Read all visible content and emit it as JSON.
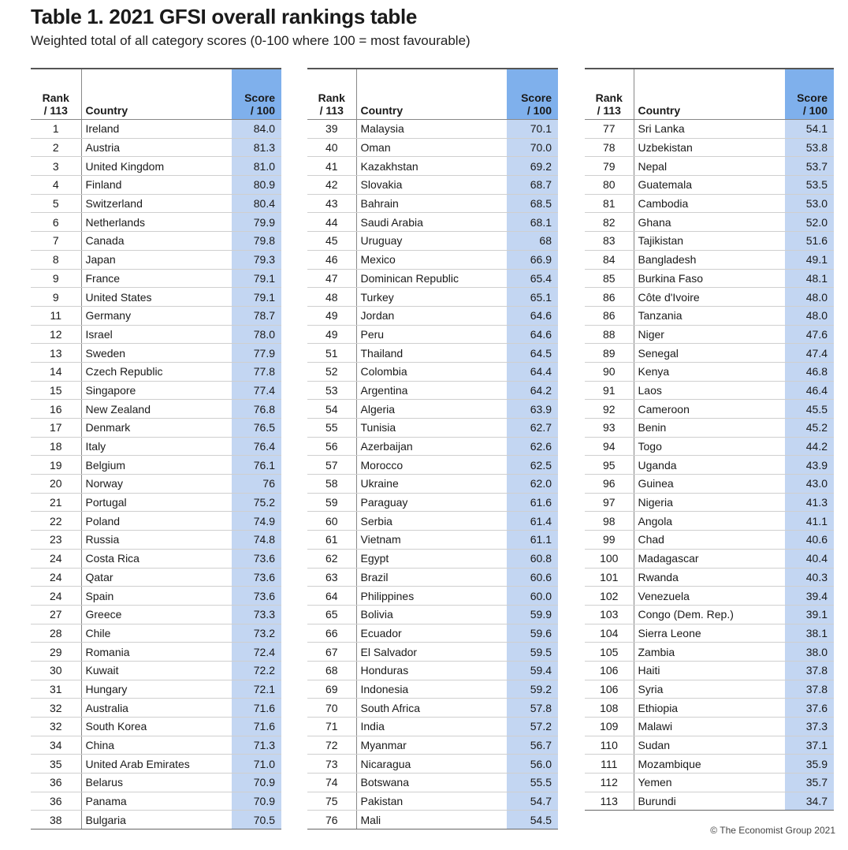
{
  "title": "Table 1. 2021 GFSI overall rankings table",
  "subtitle": "Weighted total of all category scores (0-100 where 100 = most favourable)",
  "headers": {
    "rank_line1": "Rank",
    "rank_line2": "/ 113",
    "country": "Country",
    "score_line1": "Score",
    "score_line2": "/ 100"
  },
  "footer": "© The Economist Group 2021",
  "columns": [
    [
      [
        "1",
        "Ireland",
        "84.0"
      ],
      [
        "2",
        "Austria",
        "81.3"
      ],
      [
        "3",
        "United Kingdom",
        "81.0"
      ],
      [
        "4",
        "Finland",
        "80.9"
      ],
      [
        "5",
        "Switzerland",
        "80.4"
      ],
      [
        "6",
        "Netherlands",
        "79.9"
      ],
      [
        "7",
        "Canada",
        "79.8"
      ],
      [
        "8",
        "Japan",
        "79.3"
      ],
      [
        "9",
        "France",
        "79.1"
      ],
      [
        "9",
        "United States",
        "79.1"
      ],
      [
        "11",
        "Germany",
        "78.7"
      ],
      [
        "12",
        "Israel",
        "78.0"
      ],
      [
        "13",
        "Sweden",
        "77.9"
      ],
      [
        "14",
        "Czech Republic",
        "77.8"
      ],
      [
        "15",
        "Singapore",
        "77.4"
      ],
      [
        "16",
        "New Zealand",
        "76.8"
      ],
      [
        "17",
        "Denmark",
        "76.5"
      ],
      [
        "18",
        "Italy",
        "76.4"
      ],
      [
        "19",
        "Belgium",
        "76.1"
      ],
      [
        "20",
        "Norway",
        "76"
      ],
      [
        "21",
        "Portugal",
        "75.2"
      ],
      [
        "22",
        "Poland",
        "74.9"
      ],
      [
        "23",
        "Russia",
        "74.8"
      ],
      [
        "24",
        "Costa Rica",
        "73.6"
      ],
      [
        "24",
        "Qatar",
        "73.6"
      ],
      [
        "24",
        "Spain",
        "73.6"
      ],
      [
        "27",
        "Greece",
        "73.3"
      ],
      [
        "28",
        "Chile",
        "73.2"
      ],
      [
        "29",
        "Romania",
        "72.4"
      ],
      [
        "30",
        "Kuwait",
        "72.2"
      ],
      [
        "31",
        "Hungary",
        "72.1"
      ],
      [
        "32",
        "Australia",
        "71.6"
      ],
      [
        "32",
        "South Korea",
        "71.6"
      ],
      [
        "34",
        "China",
        "71.3"
      ],
      [
        "35",
        "United Arab Emirates",
        "71.0"
      ],
      [
        "36",
        "Belarus",
        "70.9"
      ],
      [
        "36",
        "Panama",
        "70.9"
      ],
      [
        "38",
        "Bulgaria",
        "70.5"
      ]
    ],
    [
      [
        "39",
        "Malaysia",
        "70.1"
      ],
      [
        "40",
        "Oman",
        "70.0"
      ],
      [
        "41",
        "Kazakhstan",
        "69.2"
      ],
      [
        "42",
        "Slovakia",
        "68.7"
      ],
      [
        "43",
        "Bahrain",
        "68.5"
      ],
      [
        "44",
        "Saudi Arabia",
        "68.1"
      ],
      [
        "45",
        "Uruguay",
        "68"
      ],
      [
        "46",
        "Mexico",
        "66.9"
      ],
      [
        "47",
        "Dominican Republic",
        "65.4"
      ],
      [
        "48",
        "Turkey",
        "65.1"
      ],
      [
        "49",
        "Jordan",
        "64.6"
      ],
      [
        "49",
        "Peru",
        "64.6"
      ],
      [
        "51",
        "Thailand",
        "64.5"
      ],
      [
        "52",
        "Colombia",
        "64.4"
      ],
      [
        "53",
        "Argentina",
        "64.2"
      ],
      [
        "54",
        "Algeria",
        "63.9"
      ],
      [
        "55",
        "Tunisia",
        "62.7"
      ],
      [
        "56",
        "Azerbaijan",
        "62.6"
      ],
      [
        "57",
        "Morocco",
        "62.5"
      ],
      [
        "58",
        "Ukraine",
        "62.0"
      ],
      [
        "59",
        "Paraguay",
        "61.6"
      ],
      [
        "60",
        "Serbia",
        "61.4"
      ],
      [
        "61",
        "Vietnam",
        "61.1"
      ],
      [
        "62",
        "Egypt",
        "60.8"
      ],
      [
        "63",
        "Brazil",
        "60.6"
      ],
      [
        "64",
        "Philippines",
        "60.0"
      ],
      [
        "65",
        "Bolivia",
        "59.9"
      ],
      [
        "66",
        "Ecuador",
        "59.6"
      ],
      [
        "67",
        "El Salvador",
        "59.5"
      ],
      [
        "68",
        "Honduras",
        "59.4"
      ],
      [
        "69",
        "Indonesia",
        "59.2"
      ],
      [
        "70",
        "South Africa",
        "57.8"
      ],
      [
        "71",
        "India",
        "57.2"
      ],
      [
        "72",
        "Myanmar",
        "56.7"
      ],
      [
        "73",
        "Nicaragua",
        "56.0"
      ],
      [
        "74",
        "Botswana",
        "55.5"
      ],
      [
        "75",
        "Pakistan",
        "54.7"
      ],
      [
        "76",
        "Mali",
        "54.5"
      ]
    ],
    [
      [
        "77",
        "Sri Lanka",
        "54.1"
      ],
      [
        "78",
        "Uzbekistan",
        "53.8"
      ],
      [
        "79",
        "Nepal",
        "53.7"
      ],
      [
        "80",
        "Guatemala",
        "53.5"
      ],
      [
        "81",
        "Cambodia",
        "53.0"
      ],
      [
        "82",
        "Ghana",
        "52.0"
      ],
      [
        "83",
        "Tajikistan",
        "51.6"
      ],
      [
        "84",
        "Bangladesh",
        "49.1"
      ],
      [
        "85",
        "Burkina Faso",
        "48.1"
      ],
      [
        "86",
        "Côte d'Ivoire",
        "48.0"
      ],
      [
        "86",
        "Tanzania",
        "48.0"
      ],
      [
        "88",
        "Niger",
        "47.6"
      ],
      [
        "89",
        "Senegal",
        "47.4"
      ],
      [
        "90",
        "Kenya",
        "46.8"
      ],
      [
        "91",
        "Laos",
        "46.4"
      ],
      [
        "92",
        "Cameroon",
        "45.5"
      ],
      [
        "93",
        "Benin",
        "45.2"
      ],
      [
        "94",
        "Togo",
        "44.2"
      ],
      [
        "95",
        "Uganda",
        "43.9"
      ],
      [
        "96",
        "Guinea",
        "43.0"
      ],
      [
        "97",
        "Nigeria",
        "41.3"
      ],
      [
        "98",
        "Angola",
        "41.1"
      ],
      [
        "99",
        "Chad",
        "40.6"
      ],
      [
        "100",
        "Madagascar",
        "40.4"
      ],
      [
        "101",
        "Rwanda",
        "40.3"
      ],
      [
        "102",
        "Venezuela",
        "39.4"
      ],
      [
        "103",
        "Congo (Dem. Rep.)",
        "39.1"
      ],
      [
        "104",
        "Sierra Leone",
        "38.1"
      ],
      [
        "105",
        "Zambia",
        "38.0"
      ],
      [
        "106",
        "Haiti",
        "37.8"
      ],
      [
        "106",
        "Syria",
        "37.8"
      ],
      [
        "108",
        "Ethiopia",
        "37.6"
      ],
      [
        "109",
        "Malawi",
        "37.3"
      ],
      [
        "110",
        "Sudan",
        "37.1"
      ],
      [
        "111",
        "Mozambique",
        "35.9"
      ],
      [
        "112",
        "Yemen",
        "35.7"
      ],
      [
        "113",
        "Burundi",
        "34.7"
      ]
    ]
  ]
}
